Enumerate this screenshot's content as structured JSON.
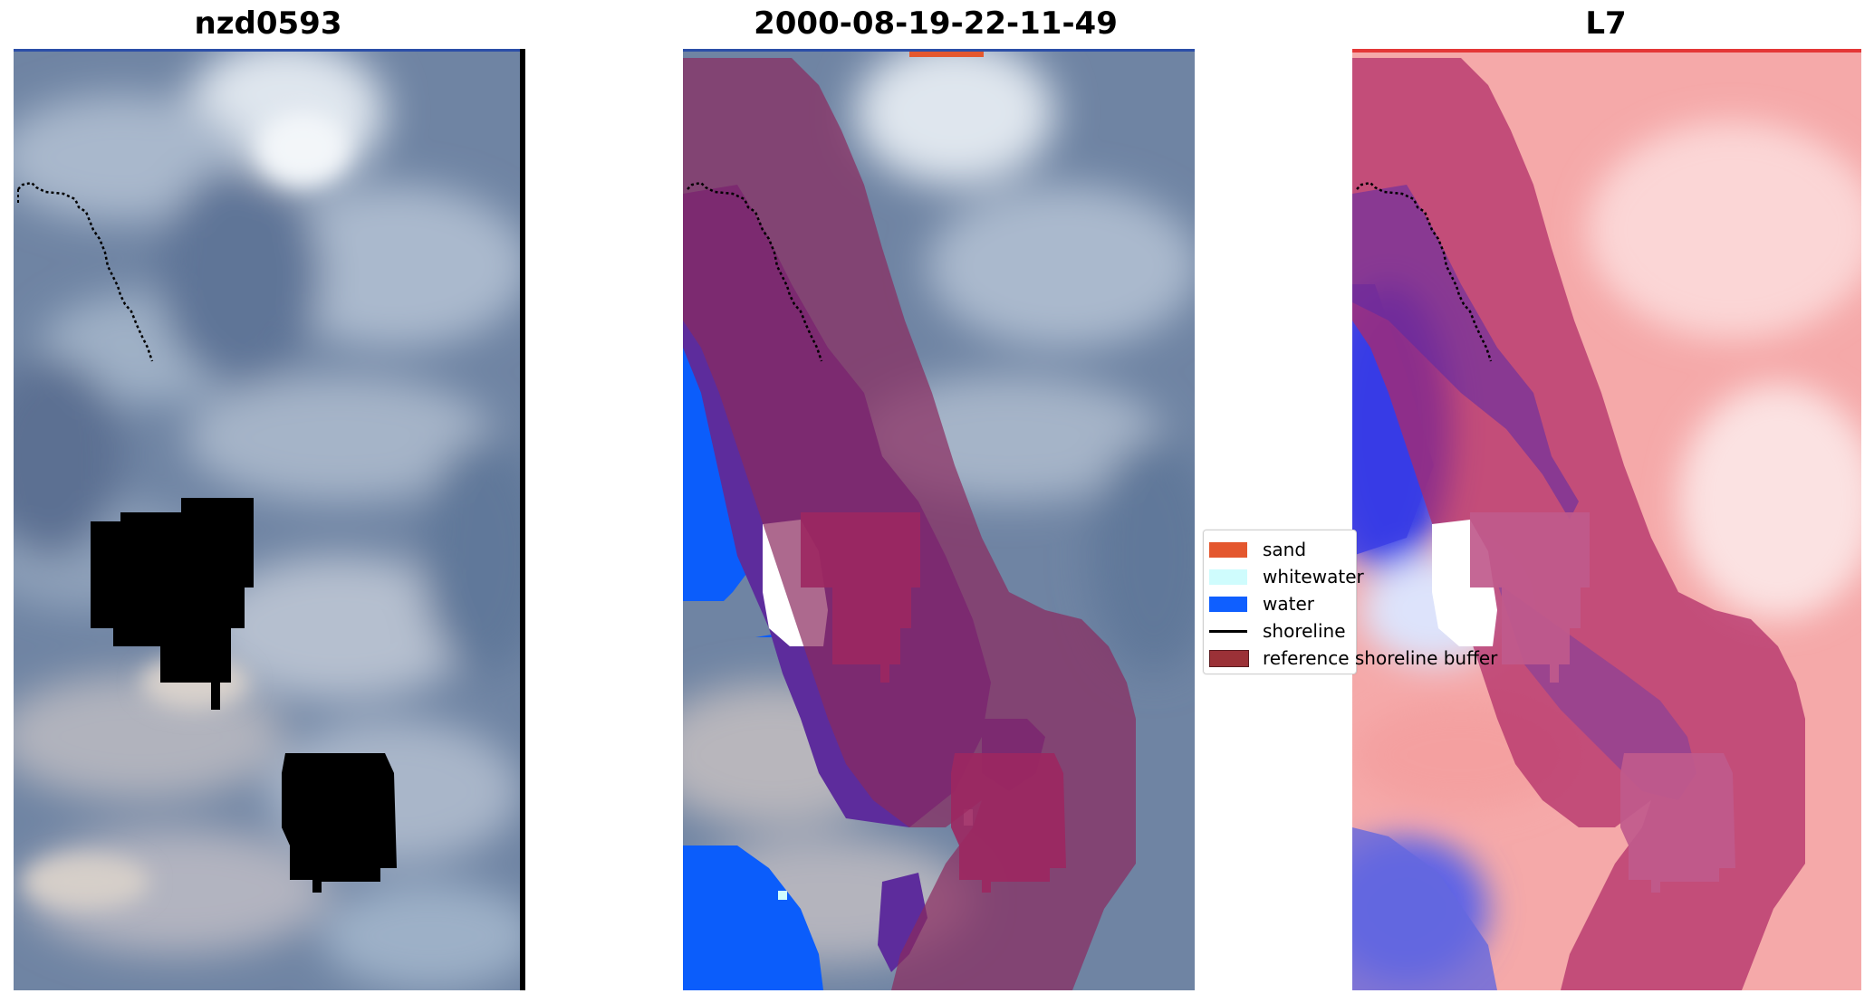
{
  "panels": [
    {
      "title": "nzd0593"
    },
    {
      "title": "2000-08-19-22-11-49"
    },
    {
      "title": "L7"
    }
  ],
  "legend": {
    "items": [
      {
        "label": "sand",
        "color": "#e4572e",
        "kind": "patch"
      },
      {
        "label": "whitewater",
        "color": "#cffcfd",
        "kind": "patch"
      },
      {
        "label": "water",
        "color": "#0f5fff",
        "kind": "patch"
      },
      {
        "label": "shoreline",
        "color": "#000000",
        "kind": "line"
      },
      {
        "label": "reference shoreline buffer",
        "color": "#9b3137",
        "kind": "patch"
      }
    ]
  },
  "colors": {
    "satellite_base": "#7488a5",
    "cloud_light": "#c9d2de",
    "buffer_overlay": "#8a2a5e",
    "water_blue": "#0b5dfb",
    "index_red": "#f26a6a",
    "index_blue": "#2e33ef"
  }
}
